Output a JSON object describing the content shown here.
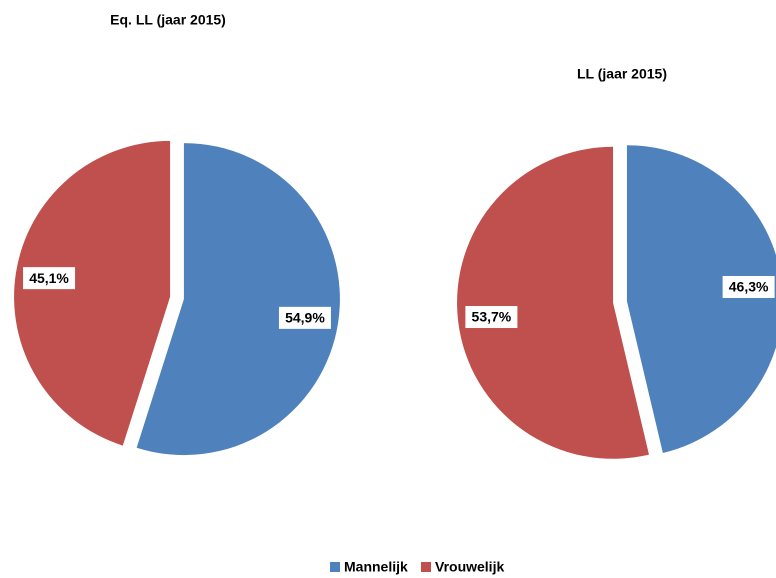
{
  "chart_data": [
    {
      "type": "pie",
      "title": "Eq. LL (jaar 2015)",
      "categories": [
        "Mannelijk",
        "Vrouwelijk"
      ],
      "values": [
        54.9,
        45.1
      ],
      "value_labels": [
        "54,9%",
        "45,1%"
      ],
      "colors": [
        "#4f81bd",
        "#c0504d"
      ]
    },
    {
      "type": "pie",
      "title": "LL (jaar 2015)",
      "categories": [
        "Mannelijk",
        "Vrouwelijk"
      ],
      "values": [
        46.3,
        53.7
      ],
      "value_labels": [
        "46,3%",
        "53,7%"
      ],
      "colors": [
        "#4f81bd",
        "#c0504d"
      ]
    }
  ]
}
